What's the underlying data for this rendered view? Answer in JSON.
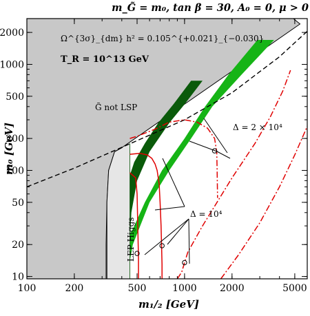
{
  "chart_data": {
    "type": "line",
    "title": "m_G̃ = m₀, tan β = 30, A₀ = 0, μ > 0",
    "xlabel": "m₁/₂ [GeV]",
    "ylabel": "m₀ [GeV]",
    "xscale": "log",
    "yscale": "log",
    "xlim": [
      100,
      6000
    ],
    "ylim": [
      9.5,
      2700
    ],
    "x_ticks": [
      100,
      200,
      500,
      1000,
      2000,
      5000
    ],
    "x_tick_labels": [
      "100",
      "200",
      "500",
      "1000",
      "2000",
      "5000"
    ],
    "y_ticks": [
      10,
      20,
      50,
      100,
      200,
      500,
      1000,
      2000
    ],
    "y_tick_labels": [
      "10",
      "20",
      "50",
      "100",
      "200",
      "500",
      "1000",
      "2000"
    ],
    "annotations": {
      "relic": "Ω^{3σ}_{dm} h² = 0.105^{+0.021}_{−0.030}",
      "tr": "T_R = 10^13 GeV",
      "gravitino": "G̃ not LSP",
      "lep": "LEP Higgs",
      "delta_high": "Δ = 2 × 10⁴",
      "delta_low": "Δ = 10⁴"
    },
    "colors": {
      "excluded": "#c8c8c8",
      "lep": "#e6e6e6",
      "band_dark": "#0a5a0a",
      "band_light": "#16b416",
      "contour": "#e00000",
      "boundary": "#000000"
    },
    "regions": {
      "gravitino_boundary": [
        [
          100,
          9.5
        ],
        [
          100,
          2700
        ],
        [
          4900,
          2700
        ],
        [
          5400,
          2400
        ],
        [
          410,
          168
        ],
        [
          360,
          150
        ],
        [
          330,
          100
        ],
        [
          322,
          50
        ],
        [
          318,
          20
        ],
        [
          318,
          9.5
        ]
      ],
      "lep_excluded": [
        [
          322,
          9.5
        ],
        [
          322,
          50
        ],
        [
          330,
          100
        ],
        [
          360,
          150
        ],
        [
          405,
          165
        ],
        [
          450,
          180
        ],
        [
          450,
          9.5
        ]
      ],
      "dark_band": [
        [
          450,
          20
        ],
        [
          460,
          40
        ],
        [
          500,
          80
        ],
        [
          600,
          150
        ],
        [
          800,
          280
        ],
        [
          1000,
          420
        ],
        [
          1300,
          700
        ],
        [
          1100,
          700
        ],
        [
          850,
          420
        ],
        [
          680,
          280
        ],
        [
          560,
          180
        ],
        [
          480,
          120
        ],
        [
          450,
          90
        ]
      ],
      "light_band": [
        [
          450,
          14
        ],
        [
          470,
          20
        ],
        [
          600,
          50
        ],
        [
          800,
          100
        ],
        [
          1100,
          200
        ],
        [
          1500,
          400
        ],
        [
          2300,
          800
        ],
        [
          3700,
          1700
        ],
        [
          2900,
          1700
        ],
        [
          1900,
          800
        ],
        [
          1350,
          400
        ],
        [
          1000,
          200
        ],
        [
          720,
          100
        ],
        [
          560,
          50
        ],
        [
          470,
          28
        ],
        [
          450,
          25
        ]
      ]
    },
    "series": [
      {
        "style": "dashed",
        "x": [
          100,
          200,
          400,
          600,
          1000,
          2000,
          4000,
          6000
        ],
        "y": [
          70,
          105,
          165,
          215,
          300,
          540,
          1180,
          2050
        ]
      },
      {
        "style": "dashdot",
        "x": [
          450,
          500,
          650,
          800,
          1000,
          1200,
          1400,
          1550,
          1600,
          1610,
          1620
        ],
        "y": [
          200,
          210,
          245,
          285,
          300,
          285,
          250,
          200,
          150,
          100,
          55
        ]
      },
      {
        "style": "solid-red",
        "x": [
          450,
          520,
          580,
          620,
          650,
          670,
          690,
          700,
          710,
          715,
          720,
          720
        ],
        "y": [
          142,
          145,
          140,
          130,
          115,
          100,
          75,
          50,
          30,
          20,
          13,
          9.5
        ]
      },
      {
        "style": "solid-red",
        "x": [
          450,
          490,
          500,
          505,
          510,
          510
        ],
        "y": [
          95,
          85,
          60,
          30,
          15,
          9.5
        ]
      },
      {
        "style": "dashdot",
        "x": [
          900,
          960,
          1000,
          1050,
          1300,
          2000,
          2800,
          3500,
          4200,
          4700
        ],
        "y": [
          9.5,
          11,
          13.5,
          17,
          30,
          85,
          180,
          320,
          560,
          880
        ]
      },
      {
        "style": "dashdot",
        "x": [
          1700,
          2200,
          3000,
          4000,
          5000,
          6000
        ],
        "y": [
          9.5,
          16,
          32,
          70,
          140,
          260
        ]
      }
    ],
    "markers": [
      [
        500,
        16.5
      ],
      [
        720,
        19.5
      ],
      [
        1000,
        13.5
      ],
      [
        1550,
        153
      ]
    ]
  }
}
